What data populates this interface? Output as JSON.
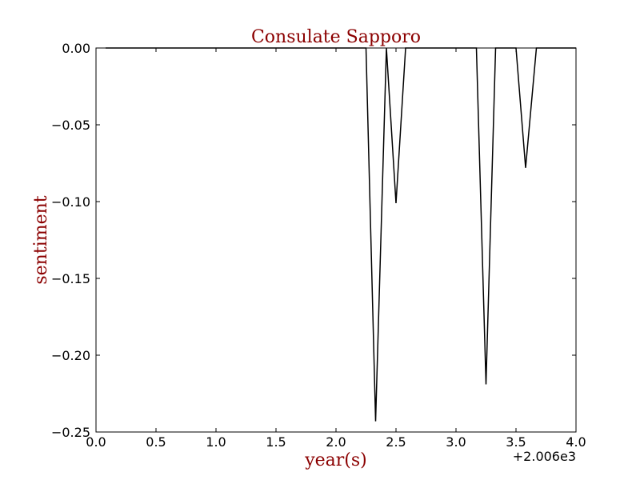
{
  "chart_data": {
    "type": "line",
    "title": "Consulate Sapporo",
    "xlabel": "year(s)",
    "ylabel": "sentiment",
    "x_offset_label": "+2.006e3",
    "xlim": [
      0.0,
      4.0
    ],
    "ylim": [
      -0.25,
      0.0
    ],
    "x_ticks": [
      "0.0",
      "0.5",
      "1.0",
      "1.5",
      "2.0",
      "2.5",
      "3.0",
      "3.5",
      "4.0"
    ],
    "y_ticks": [
      "0.00",
      "−0.05",
      "−0.10",
      "−0.15",
      "−0.20",
      "−0.25"
    ],
    "grid": false,
    "label_color": "#8b0000",
    "line_color": "#000000",
    "series": [
      {
        "x": [
          0.08,
          2.25,
          2.33,
          2.42,
          2.5,
          2.58,
          3.17,
          3.25,
          3.33,
          3.5,
          3.58,
          3.67,
          4.0
        ],
        "values": [
          0.0,
          0.0,
          -0.243,
          0.0,
          -0.101,
          0.0,
          0.0,
          -0.219,
          0.0,
          0.0,
          -0.078,
          0.0,
          0.0
        ]
      }
    ]
  }
}
